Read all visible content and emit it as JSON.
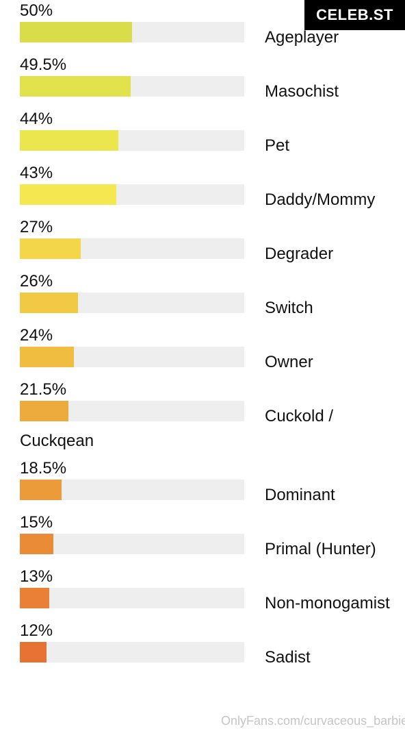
{
  "chart_data": {
    "type": "bar",
    "categories": [
      "Ageplayer",
      "Masochist",
      "Pet",
      "Daddy/Mommy",
      "Degrader",
      "Switch",
      "Owner",
      "Cuckold / Cuckqean",
      "Dominant",
      "Primal (Hunter)",
      "Non-monogamist",
      "Sadist"
    ],
    "values": [
      50,
      49.5,
      44,
      43,
      27,
      26,
      24,
      21.5,
      18.5,
      15,
      13,
      12
    ],
    "value_labels": [
      "50%",
      "49.5%",
      "44%",
      "43%",
      "27%",
      "26%",
      "24%",
      "21.5%",
      "18.5%",
      "15%",
      "13%",
      "12%"
    ],
    "colors": [
      "#d9dd4a",
      "#e2e24c",
      "#ebe64e",
      "#f4e74f",
      "#f3d64a",
      "#f1c944",
      "#f0bd40",
      "#eeab3d",
      "#ec9b3a",
      "#ea8c37",
      "#e98035",
      "#e77233"
    ],
    "xlim": [
      0,
      100
    ]
  },
  "watermarks": {
    "badge": "CELEB.ST",
    "footer": "OnlyFans.com/curvaceous_barbie"
  }
}
